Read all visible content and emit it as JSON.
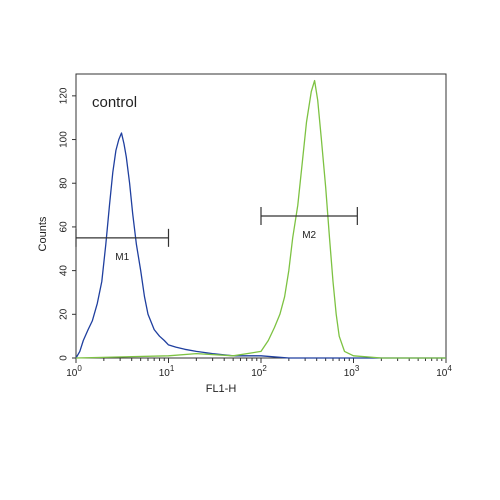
{
  "chart_data": {
    "type": "line",
    "annotation": "control",
    "xlabel": "FL1-H",
    "ylabel": "Counts",
    "x_scale": "log",
    "xlim": [
      1,
      10000
    ],
    "ylim": [
      0,
      130
    ],
    "x_ticks": [
      {
        "value": 1,
        "base": "10",
        "exp": "0"
      },
      {
        "value": 10,
        "base": "10",
        "exp": "1"
      },
      {
        "value": 100,
        "base": "10",
        "exp": "2"
      },
      {
        "value": 1000,
        "base": "10",
        "exp": "3"
      },
      {
        "value": 10000,
        "base": "10",
        "exp": "4"
      }
    ],
    "y_ticks": [
      0,
      20,
      40,
      60,
      80,
      100,
      120
    ],
    "grid": false,
    "series": [
      {
        "color": "#1f3f9f",
        "x": [
          1,
          1.1,
          1.2,
          1.35,
          1.5,
          1.7,
          1.9,
          2.1,
          2.3,
          2.5,
          2.7,
          2.9,
          3.1,
          3.3,
          3.5,
          3.8,
          4.1,
          4.5,
          5,
          5.5,
          6,
          7,
          8,
          9,
          10,
          12,
          15,
          20,
          30,
          50,
          100,
          200,
          1000,
          10000
        ],
        "y": [
          0,
          3,
          8,
          13,
          17,
          25,
          35,
          52,
          70,
          85,
          95,
          100,
          103,
          98,
          92,
          80,
          66,
          52,
          40,
          28,
          20,
          13,
          10,
          8,
          6,
          5,
          4,
          3,
          2,
          1,
          1,
          0,
          0,
          0
        ]
      },
      {
        "color": "#7dc242",
        "x": [
          1,
          10,
          20,
          50,
          100,
          120,
          140,
          160,
          180,
          200,
          220,
          250,
          280,
          310,
          350,
          380,
          410,
          450,
          500,
          550,
          600,
          650,
          700,
          800,
          1000,
          2000,
          10000
        ],
        "y": [
          0,
          1,
          2,
          1,
          3,
          8,
          14,
          20,
          28,
          40,
          55,
          70,
          90,
          108,
          122,
          127,
          118,
          100,
          78,
          55,
          35,
          20,
          10,
          3,
          1,
          0,
          0
        ]
      }
    ],
    "markers": [
      {
        "label": "M1",
        "from": 1,
        "to": 10,
        "y": 55
      },
      {
        "label": "M2",
        "from": 100,
        "to": 1100,
        "y": 65
      }
    ]
  }
}
